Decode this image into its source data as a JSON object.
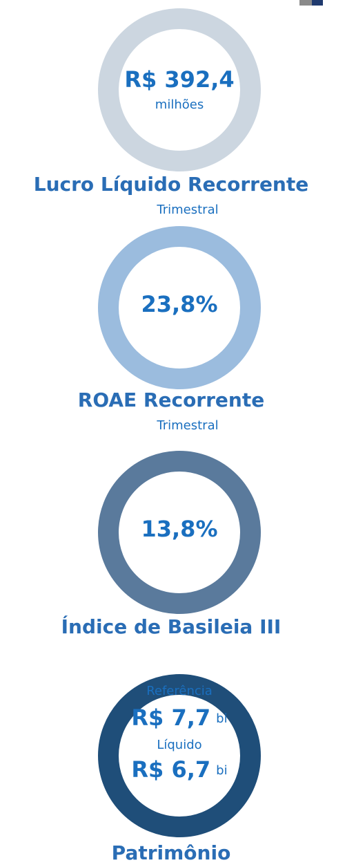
{
  "metrics": [
    {
      "value": "R$ 392,4",
      "unit": "milhões",
      "title": "Lucro Líquido Recorrente",
      "subtitle": "Trimestral",
      "color": "#ccd6e0"
    },
    {
      "value": "23,8%",
      "title": "ROAE Recorrente",
      "subtitle": "Trimestral",
      "color": "#9bbcde"
    },
    {
      "value": "13,8%",
      "title": "Índice de Basileia III",
      "color": "#5a7a9c"
    },
    {
      "title": "Patrimônio",
      "color": "#1f4e79",
      "parts": [
        {
          "label": "Referência",
          "value": "R$ 7,7",
          "unit": "bi"
        },
        {
          "label": "Líquido",
          "value": "R$ 6,7",
          "unit": "bi"
        }
      ]
    }
  ]
}
